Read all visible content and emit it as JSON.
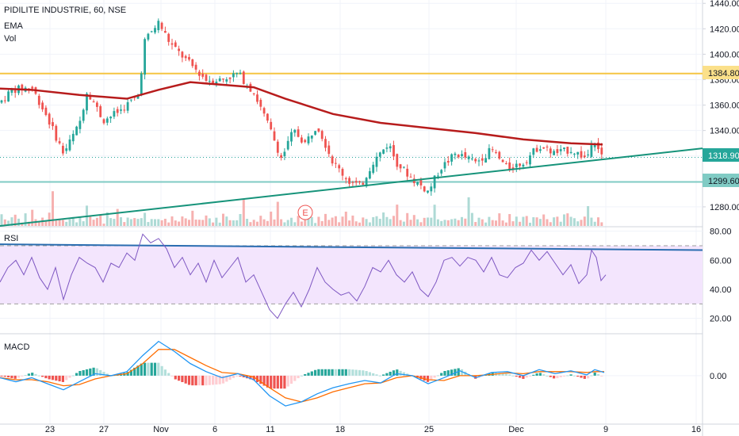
{
  "header": {
    "title": "PIDILITE INDUSTRIE, 60, NSE",
    "ema_label": "EMA",
    "vol_label": "Vol",
    "rsi_label": "RSI",
    "macd_label": "MACD",
    "earnings_marker": "E"
  },
  "price_tags": {
    "resistance": "1384.80",
    "last": "1318.90",
    "support": "1299.60"
  },
  "colors": {
    "up": "#26a69a",
    "down": "#ef5350",
    "ema": "#b71c1c",
    "resistance": "#f5c542",
    "support": "#80cbc4",
    "trendline": "#16937a",
    "rsi_fill": "#f3e5fd",
    "rsi_line": "#7e57c2",
    "rsi_trend": "#2a6db0",
    "macd_line": "#2196f3",
    "signal_line": "#ff6d00"
  },
  "chart_data": [
    {
      "type": "candlestick",
      "title": "PIDILITE INDUSTRIE, 60, NSE",
      "ylim": [
        1265,
        1442
      ],
      "yticks": [
        1280,
        1300,
        1320,
        1340,
        1360,
        1380,
        1400,
        1420,
        1440
      ],
      "x_tick_labels": [
        "23",
        "27",
        "Nov",
        "6",
        "11",
        "18",
        "25",
        "Dec",
        "9",
        "16"
      ],
      "horizontal_levels": [
        1384.8,
        1299.6
      ],
      "last_price": 1318.9,
      "ema_points": [
        [
          0,
          1373
        ],
        [
          40,
          1372
        ],
        [
          100,
          1368
        ],
        [
          160,
          1365
        ],
        [
          200,
          1372
        ],
        [
          240,
          1378
        ],
        [
          280,
          1376
        ],
        [
          320,
          1374
        ],
        [
          360,
          1365
        ],
        [
          420,
          1353
        ],
        [
          480,
          1346
        ],
        [
          540,
          1342
        ],
        [
          600,
          1338
        ],
        [
          660,
          1333
        ],
        [
          720,
          1330
        ],
        [
          760,
          1329
        ]
      ],
      "candle_path": [
        [
          0,
          1362
        ],
        [
          15,
          1372
        ],
        [
          40,
          1374
        ],
        [
          60,
          1350
        ],
        [
          80,
          1322
        ],
        [
          100,
          1345
        ],
        [
          110,
          1372
        ],
        [
          130,
          1348
        ],
        [
          150,
          1355
        ],
        [
          175,
          1368
        ],
        [
          182,
          1410
        ],
        [
          200,
          1425
        ],
        [
          215,
          1408
        ],
        [
          240,
          1392
        ],
        [
          260,
          1380
        ],
        [
          280,
          1380
        ],
        [
          300,
          1385
        ],
        [
          320,
          1370
        ],
        [
          340,
          1342
        ],
        [
          355,
          1318
        ],
        [
          370,
          1340
        ],
        [
          385,
          1330
        ],
        [
          400,
          1345
        ],
        [
          420,
          1315
        ],
        [
          440,
          1300
        ],
        [
          455,
          1296
        ],
        [
          470,
          1315
        ],
        [
          490,
          1330
        ],
        [
          500,
          1315
        ],
        [
          520,
          1302
        ],
        [
          540,
          1292
        ],
        [
          555,
          1310
        ],
        [
          575,
          1322
        ],
        [
          600,
          1315
        ],
        [
          620,
          1325
        ],
        [
          640,
          1310
        ],
        [
          660,
          1315
        ],
        [
          680,
          1328
        ],
        [
          700,
          1322
        ],
        [
          720,
          1325
        ],
        [
          740,
          1318
        ],
        [
          748,
          1336
        ],
        [
          760,
          1318
        ]
      ],
      "volume_heights": [
        0.35,
        0.2,
        0.15,
        0.25,
        0.45,
        0.2,
        0.1,
        0.3,
        0.15,
        0.5,
        0.2,
        0.12,
        0.25,
        0.18,
        0.3,
        0.9,
        0.2,
        0.15,
        0.25,
        0.12,
        0.3,
        0.2,
        0.15,
        0.35,
        0.2,
        0.8,
        0.3,
        0.15,
        0.2,
        0.25,
        0.1,
        0.3,
        0.2,
        0.15,
        0.4,
        0.2,
        0.1,
        0.25,
        0.2,
        0.3,
        0.15,
        0.2,
        0.35,
        0.12,
        0.2,
        0.3,
        0.15,
        0.25,
        0.2,
        0.1,
        0.3,
        0.2,
        0.15,
        0.25,
        0.3,
        0.2
      ]
    },
    {
      "type": "line",
      "title": "RSI",
      "ylim": [
        10,
        82
      ],
      "yticks": [
        20,
        40,
        60,
        80
      ],
      "band": [
        30,
        70
      ],
      "points": [
        [
          0,
          45
        ],
        [
          10,
          55
        ],
        [
          20,
          60
        ],
        [
          30,
          50
        ],
        [
          40,
          62
        ],
        [
          50,
          48
        ],
        [
          60,
          40
        ],
        [
          70,
          55
        ],
        [
          80,
          33
        ],
        [
          90,
          50
        ],
        [
          100,
          62
        ],
        [
          110,
          58
        ],
        [
          120,
          55
        ],
        [
          130,
          45
        ],
        [
          140,
          58
        ],
        [
          150,
          55
        ],
        [
          160,
          65
        ],
        [
          170,
          60
        ],
        [
          180,
          78
        ],
        [
          190,
          72
        ],
        [
          200,
          75
        ],
        [
          210,
          68
        ],
        [
          220,
          55
        ],
        [
          230,
          62
        ],
        [
          240,
          50
        ],
        [
          250,
          58
        ],
        [
          260,
          45
        ],
        [
          270,
          60
        ],
        [
          280,
          48
        ],
        [
          290,
          55
        ],
        [
          300,
          62
        ],
        [
          310,
          45
        ],
        [
          320,
          50
        ],
        [
          330,
          38
        ],
        [
          340,
          26
        ],
        [
          350,
          20
        ],
        [
          360,
          30
        ],
        [
          370,
          38
        ],
        [
          380,
          28
        ],
        [
          390,
          40
        ],
        [
          400,
          55
        ],
        [
          410,
          45
        ],
        [
          420,
          40
        ],
        [
          430,
          36
        ],
        [
          440,
          38
        ],
        [
          450,
          32
        ],
        [
          460,
          42
        ],
        [
          470,
          55
        ],
        [
          480,
          52
        ],
        [
          490,
          60
        ],
        [
          500,
          50
        ],
        [
          510,
          45
        ],
        [
          520,
          52
        ],
        [
          530,
          40
        ],
        [
          540,
          35
        ],
        [
          550,
          45
        ],
        [
          560,
          60
        ],
        [
          570,
          62
        ],
        [
          580,
          56
        ],
        [
          590,
          62
        ],
        [
          600,
          60
        ],
        [
          610,
          52
        ],
        [
          620,
          62
        ],
        [
          630,
          50
        ],
        [
          640,
          48
        ],
        [
          650,
          55
        ],
        [
          660,
          58
        ],
        [
          670,
          67
        ],
        [
          680,
          60
        ],
        [
          690,
          66
        ],
        [
          700,
          58
        ],
        [
          710,
          50
        ],
        [
          720,
          57
        ],
        [
          730,
          44
        ],
        [
          740,
          50
        ],
        [
          746,
          67
        ],
        [
          752,
          62
        ],
        [
          758,
          46
        ],
        [
          764,
          50
        ]
      ]
    },
    {
      "type": "line",
      "title": "MACD",
      "ylim": [
        -12,
        10
      ],
      "yticks": [
        0
      ],
      "macd": [
        [
          0,
          -0.5
        ],
        [
          20,
          -1.5
        ],
        [
          40,
          -0.5
        ],
        [
          60,
          -2
        ],
        [
          80,
          -3.5
        ],
        [
          100,
          -1.5
        ],
        [
          120,
          0.5
        ],
        [
          140,
          0
        ],
        [
          160,
          1
        ],
        [
          180,
          5
        ],
        [
          200,
          8.5
        ],
        [
          220,
          6
        ],
        [
          240,
          3
        ],
        [
          260,
          1
        ],
        [
          280,
          -0.5
        ],
        [
          300,
          0.5
        ],
        [
          320,
          -1
        ],
        [
          340,
          -5
        ],
        [
          360,
          -7.5
        ],
        [
          380,
          -6.5
        ],
        [
          400,
          -4.5
        ],
        [
          420,
          -3
        ],
        [
          440,
          -2
        ],
        [
          460,
          -1.2
        ],
        [
          480,
          -1.8
        ],
        [
          500,
          0.5
        ],
        [
          520,
          0
        ],
        [
          540,
          -2
        ],
        [
          560,
          -0.5
        ],
        [
          580,
          1.2
        ],
        [
          600,
          -0.5
        ],
        [
          620,
          0.8
        ],
        [
          640,
          1
        ],
        [
          660,
          0
        ],
        [
          680,
          1.5
        ],
        [
          700,
          0.5
        ],
        [
          720,
          1.2
        ],
        [
          740,
          0.2
        ],
        [
          750,
          1.5
        ],
        [
          762,
          0.8
        ]
      ],
      "signal": [
        [
          0,
          -0.5
        ],
        [
          20,
          -1
        ],
        [
          40,
          -1
        ],
        [
          60,
          -1.5
        ],
        [
          80,
          -2.5
        ],
        [
          100,
          -2.2
        ],
        [
          120,
          -0.8
        ],
        [
          140,
          0
        ],
        [
          160,
          0.5
        ],
        [
          180,
          3
        ],
        [
          200,
          6.5
        ],
        [
          220,
          6.5
        ],
        [
          240,
          4.5
        ],
        [
          260,
          2.5
        ],
        [
          280,
          0.8
        ],
        [
          300,
          0.5
        ],
        [
          320,
          -0.3
        ],
        [
          340,
          -3
        ],
        [
          360,
          -5.5
        ],
        [
          380,
          -6.5
        ],
        [
          400,
          -5.5
        ],
        [
          420,
          -4
        ],
        [
          440,
          -3
        ],
        [
          460,
          -2
        ],
        [
          480,
          -1.8
        ],
        [
          500,
          -0.5
        ],
        [
          520,
          0
        ],
        [
          540,
          -1
        ],
        [
          560,
          -1.2
        ],
        [
          580,
          0
        ],
        [
          600,
          0
        ],
        [
          620,
          0.3
        ],
        [
          640,
          0.7
        ],
        [
          660,
          0.5
        ],
        [
          680,
          1
        ],
        [
          700,
          1
        ],
        [
          720,
          1
        ],
        [
          740,
          0.8
        ],
        [
          750,
          1
        ],
        [
          762,
          1
        ]
      ],
      "histogram_series": [
        "macd-minus-signal"
      ]
    }
  ]
}
